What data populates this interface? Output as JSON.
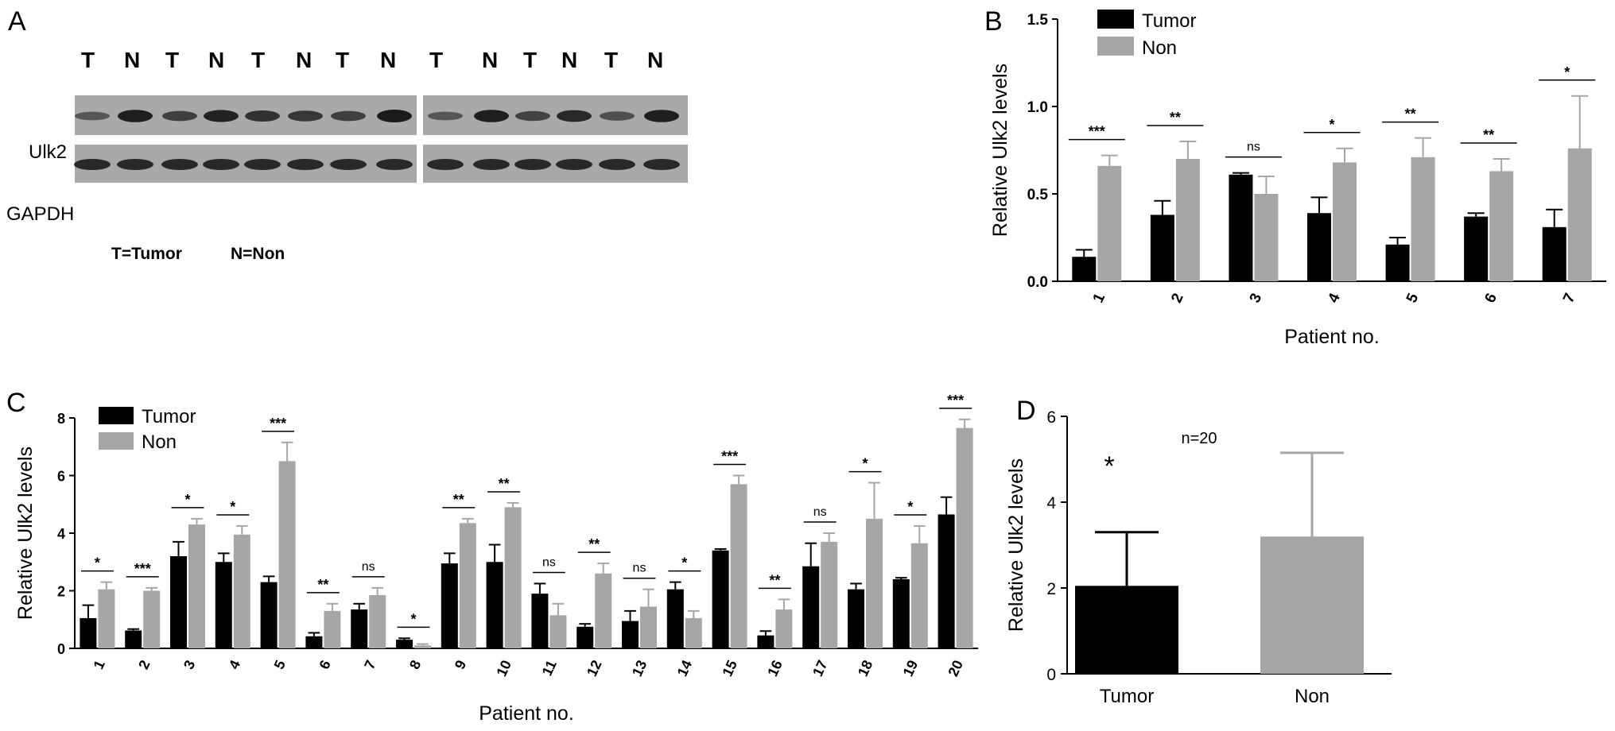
{
  "panels": {
    "A": "A",
    "B": "B",
    "C": "C",
    "D": "D"
  },
  "blot": {
    "lanes": [
      "T",
      "N",
      "T",
      "N",
      "T",
      "N",
      "T",
      "N",
      "T",
      "N",
      "T",
      "N",
      "T",
      "N"
    ],
    "rows": [
      "Ulk2",
      "GAPDH"
    ],
    "legend": [
      "T=Tumor",
      "N=Non"
    ],
    "ulk2_intensity": [
      0.35,
      0.95,
      0.6,
      0.9,
      0.75,
      0.7,
      0.6,
      1.0,
      0.35,
      0.95,
      0.55,
      0.85,
      0.45,
      0.95
    ],
    "gapdh_intensity": [
      0.9,
      0.9,
      0.9,
      0.9,
      0.9,
      0.9,
      0.9,
      0.9,
      0.9,
      0.9,
      0.9,
      0.9,
      0.9,
      0.9
    ],
    "colors": {
      "membrane": "#a9a9a9",
      "band": "#1a1a1a"
    }
  },
  "chart_data": [
    {
      "panel": "B",
      "type": "bar",
      "categories": [
        "1",
        "2",
        "3",
        "4",
        "5",
        "6",
        "7"
      ],
      "series": [
        {
          "name": "Tumor",
          "values": [
            0.14,
            0.38,
            0.61,
            0.39,
            0.21,
            0.37,
            0.31
          ],
          "errors": [
            0.04,
            0.08,
            0.01,
            0.09,
            0.04,
            0.02,
            0.1
          ],
          "color": "#000000"
        },
        {
          "name": "Non",
          "values": [
            0.66,
            0.7,
            0.5,
            0.68,
            0.71,
            0.63,
            0.76
          ],
          "errors": [
            0.06,
            0.1,
            0.1,
            0.08,
            0.11,
            0.07,
            0.3
          ],
          "color": "#a6a6a6"
        }
      ],
      "significance": [
        "***",
        "**",
        "ns",
        "*",
        "**",
        "**",
        "*"
      ],
      "xlabel": "Patient no.",
      "ylabel": "Relative Ulk2 levels",
      "ylim": [
        0,
        1.5
      ],
      "yticks": [
        "0.0",
        "0.5",
        "1.0",
        "1.5"
      ],
      "legend_position": "top-left"
    },
    {
      "panel": "C",
      "type": "bar",
      "categories": [
        "1",
        "2",
        "3",
        "4",
        "5",
        "6",
        "7",
        "8",
        "9",
        "10",
        "11",
        "12",
        "13",
        "14",
        "15",
        "16",
        "17",
        "18",
        "19",
        "20"
      ],
      "series": [
        {
          "name": "Tumor",
          "values": [
            1.05,
            0.62,
            3.2,
            3.0,
            2.3,
            0.42,
            1.35,
            0.3,
            2.95,
            3.0,
            1.9,
            0.75,
            0.95,
            2.05,
            3.4,
            0.45,
            2.85,
            2.05,
            2.4,
            4.65
          ],
          "errors": [
            0.45,
            0.05,
            0.5,
            0.3,
            0.2,
            0.12,
            0.2,
            0.05,
            0.35,
            0.6,
            0.35,
            0.1,
            0.35,
            0.25,
            0.05,
            0.15,
            0.8,
            0.2,
            0.05,
            0.6
          ],
          "color": "#000000"
        },
        {
          "name": "Non",
          "values": [
            2.05,
            2.0,
            4.3,
            3.95,
            6.5,
            1.3,
            1.85,
            0.1,
            4.35,
            4.9,
            1.15,
            2.6,
            1.45,
            1.05,
            5.7,
            1.35,
            3.7,
            4.5,
            3.65,
            7.65
          ],
          "errors": [
            0.25,
            0.1,
            0.2,
            0.3,
            0.65,
            0.25,
            0.25,
            0.05,
            0.15,
            0.15,
            0.4,
            0.35,
            0.6,
            0.25,
            0.3,
            0.35,
            0.3,
            1.25,
            0.6,
            0.3
          ],
          "color": "#a6a6a6"
        }
      ],
      "significance": [
        "*",
        "***",
        "*",
        "*",
        "***",
        "**",
        "ns",
        "*",
        "**",
        "**",
        "ns",
        "**",
        "ns",
        "*",
        "***",
        "**",
        "ns",
        "*",
        "*",
        "***"
      ],
      "xlabel": "Patient no.",
      "ylabel": "Relative Ulk2 levels",
      "ylim": [
        0,
        8
      ],
      "yticks": [
        "0",
        "2",
        "4",
        "6",
        "8"
      ],
      "legend_position": "top-left"
    },
    {
      "panel": "D",
      "type": "bar",
      "categories": [
        "Tumor",
        "Non"
      ],
      "values": [
        2.05,
        3.2
      ],
      "errors": [
        1.25,
        1.95
      ],
      "colors": [
        "#000000",
        "#a6a6a6"
      ],
      "annotation": "n=20",
      "significance": "*",
      "ylabel": "Relative Ulk2 levels",
      "ylim": [
        0,
        6
      ],
      "yticks": [
        "0",
        "2",
        "4",
        "6"
      ]
    }
  ]
}
